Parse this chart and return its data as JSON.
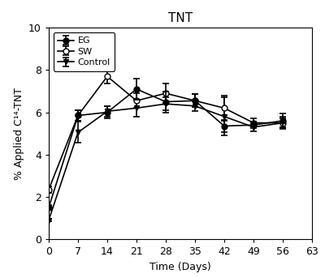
{
  "title": "TNT",
  "xlabel": "Time (Days)",
  "ylabel": "% Applied C¹⁴-TNT",
  "x": [
    0,
    7,
    14,
    21,
    28,
    35,
    42,
    49,
    56
  ],
  "EG_y": [
    1.5,
    5.85,
    6.0,
    7.1,
    6.5,
    6.55,
    5.35,
    5.4,
    5.6
  ],
  "EG_err": [
    0.1,
    0.25,
    0.3,
    0.5,
    0.5,
    0.3,
    0.3,
    0.15,
    0.35
  ],
  "SW_y": [
    2.35,
    5.85,
    7.7,
    6.55,
    6.9,
    6.55,
    6.2,
    5.5,
    5.5
  ],
  "SW_err": [
    0.15,
    0.25,
    0.35,
    0.35,
    0.45,
    0.3,
    0.6,
    0.2,
    0.2
  ],
  "Ctrl_y": [
    0.9,
    5.05,
    6.05,
    6.2,
    6.4,
    6.3,
    5.8,
    5.3,
    5.5
  ],
  "Ctrl_err": [
    0.05,
    0.5,
    0.25,
    0.4,
    0.3,
    0.25,
    0.9,
    0.2,
    0.3
  ],
  "xlim": [
    0,
    63
  ],
  "ylim": [
    0,
    10
  ],
  "xticks": [
    0,
    7,
    14,
    21,
    28,
    35,
    42,
    49,
    56,
    63
  ],
  "yticks": [
    0,
    2,
    4,
    6,
    8,
    10
  ],
  "bg_color": "#ffffff",
  "line_color": "#000000",
  "capsize": 3,
  "linewidth": 1.2,
  "markersize": 5,
  "title_fontsize": 11,
  "label_fontsize": 9,
  "tick_fontsize": 9,
  "legend_fontsize": 8
}
